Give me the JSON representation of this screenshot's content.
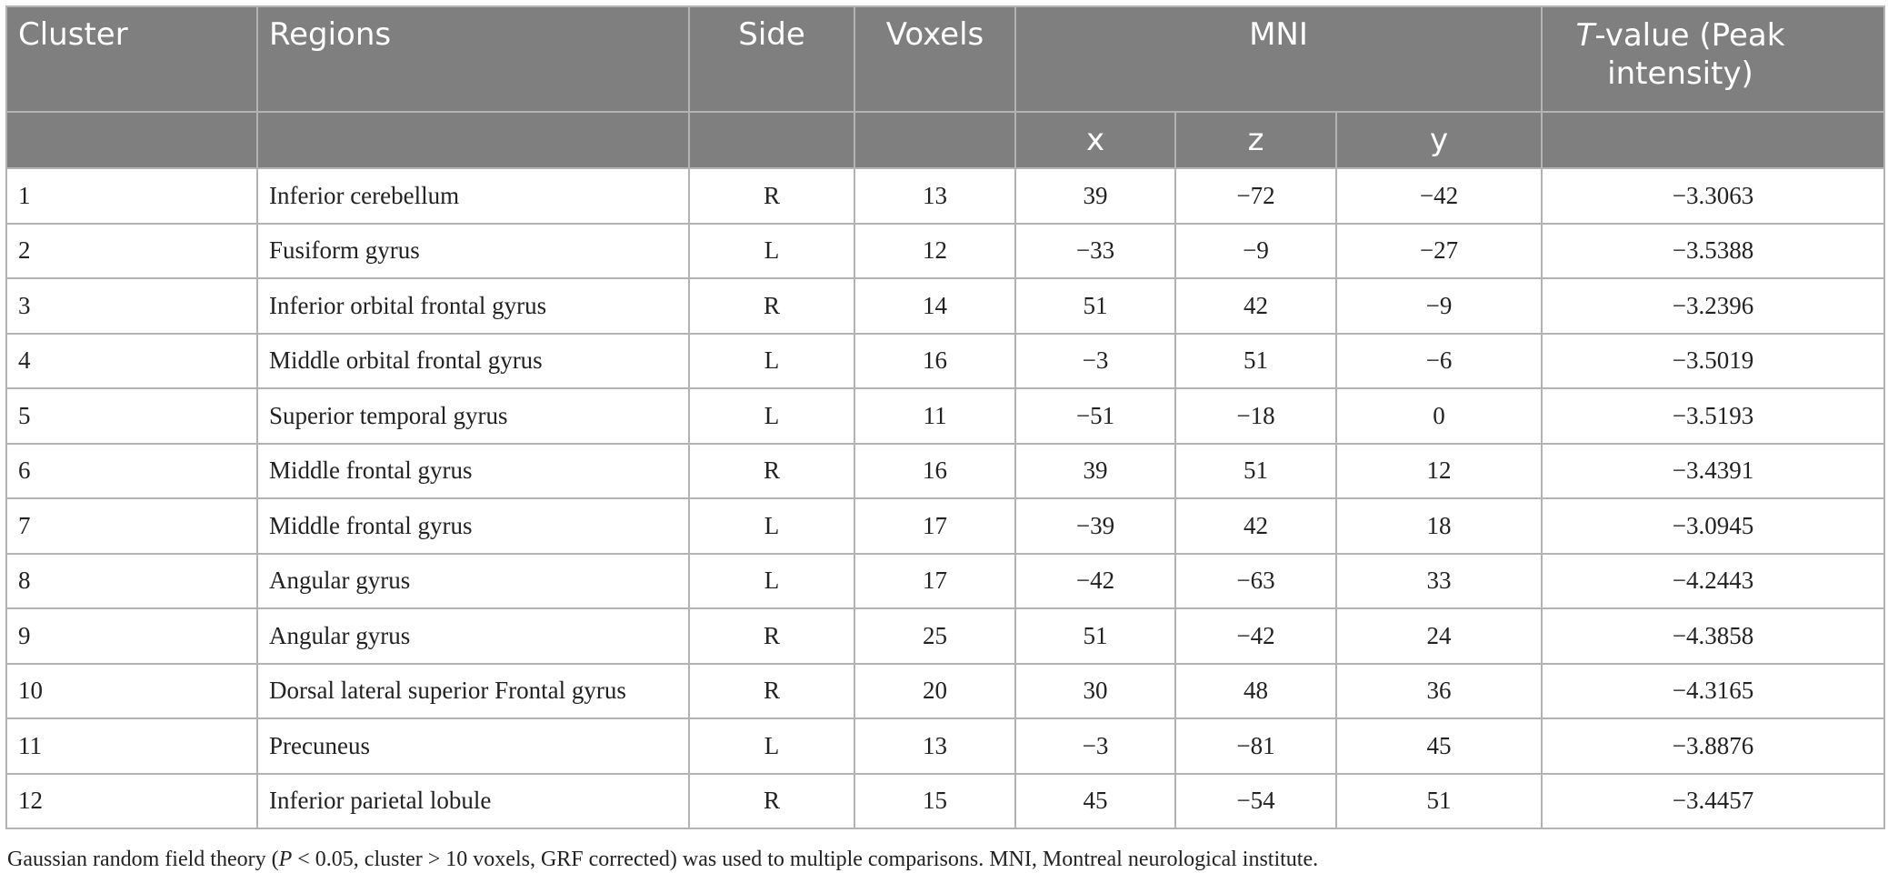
{
  "table": {
    "headers": {
      "cluster": "Cluster",
      "regions": "Regions",
      "side": "Side",
      "voxels": "Voxels",
      "mni": "MNI",
      "t_value_italic": "T",
      "t_value_rest": "-value (Peak intensity)",
      "x": "x",
      "z": "z",
      "y": "y"
    },
    "rows": [
      {
        "cluster": "1",
        "region": "Inferior cerebellum",
        "side": "R",
        "voxels": "13",
        "x": "39",
        "z": "−72",
        "y": "−42",
        "t": "−3.3063"
      },
      {
        "cluster": "2",
        "region": "Fusiform gyrus",
        "side": "L",
        "voxels": "12",
        "x": "−33",
        "z": "−9",
        "y": "−27",
        "t": "−3.5388"
      },
      {
        "cluster": "3",
        "region": "Inferior orbital frontal gyrus",
        "side": "R",
        "voxels": "14",
        "x": "51",
        "z": "42",
        "y": "−9",
        "t": "−3.2396"
      },
      {
        "cluster": "4",
        "region": "Middle orbital frontal gyrus",
        "side": "L",
        "voxels": "16",
        "x": "−3",
        "z": "51",
        "y": "−6",
        "t": "−3.5019"
      },
      {
        "cluster": "5",
        "region": "Superior temporal gyrus",
        "side": "L",
        "voxels": "11",
        "x": "−51",
        "z": "−18",
        "y": "0",
        "t": "−3.5193"
      },
      {
        "cluster": "6",
        "region": "Middle frontal gyrus",
        "side": "R",
        "voxels": "16",
        "x": "39",
        "z": "51",
        "y": "12",
        "t": "−3.4391"
      },
      {
        "cluster": "7",
        "region": "Middle frontal gyrus",
        "side": "L",
        "voxels": "17",
        "x": "−39",
        "z": "42",
        "y": "18",
        "t": "−3.0945"
      },
      {
        "cluster": "8",
        "region": "Angular gyrus",
        "side": "L",
        "voxels": "17",
        "x": "−42",
        "z": "−63",
        "y": "33",
        "t": "−4.2443"
      },
      {
        "cluster": "9",
        "region": "Angular gyrus",
        "side": "R",
        "voxels": "25",
        "x": "51",
        "z": "−42",
        "y": "24",
        "t": "−4.3858"
      },
      {
        "cluster": "10",
        "region": "Dorsal lateral superior Frontal gyrus",
        "side": "R",
        "voxels": "20",
        "x": "30",
        "z": "48",
        "y": "36",
        "t": "−4.3165"
      },
      {
        "cluster": "11",
        "region": "Precuneus",
        "side": "L",
        "voxels": "13",
        "x": "−3",
        "z": "−81",
        "y": "45",
        "t": "−3.8876"
      },
      {
        "cluster": "12",
        "region": "Inferior parietal lobule",
        "side": "R",
        "voxels": "15",
        "x": "45",
        "z": "−54",
        "y": "51",
        "t": "−3.4457"
      }
    ]
  },
  "footnote": {
    "part1": "Gaussian random field theory (",
    "p_italic": "P",
    "part2": " < 0.05, cluster > 10 voxels, GRF corrected) was used to multiple comparisons. MNI, Montreal neurological institute."
  }
}
